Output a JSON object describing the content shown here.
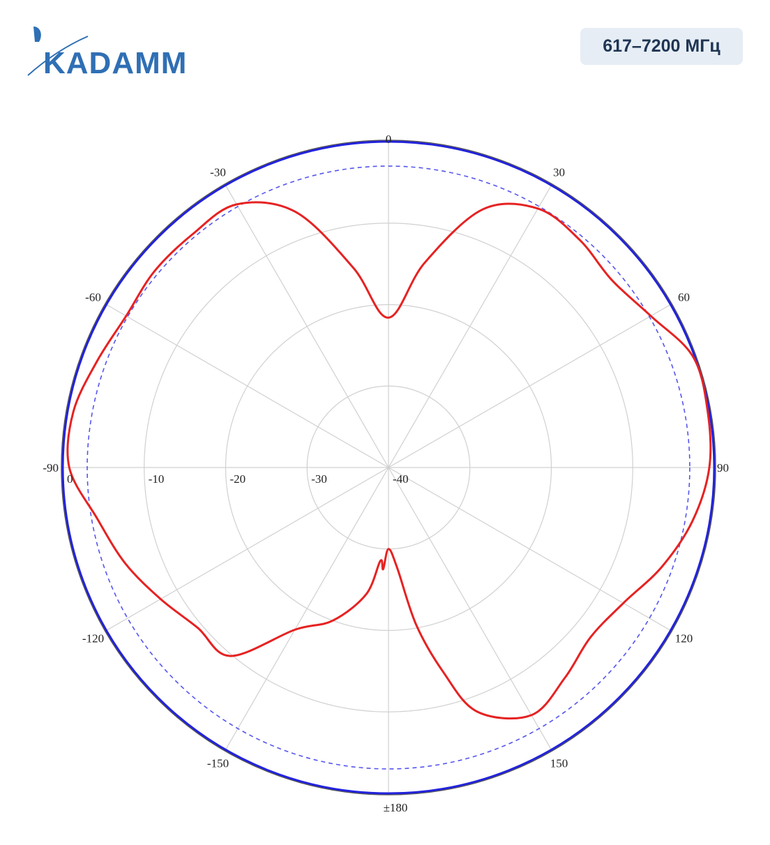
{
  "brand": {
    "logo_text": "KADAMM",
    "logo_color": "#2f6fb4"
  },
  "badge": {
    "text": "617–7200 МГц",
    "bg_color": "#e6edf5",
    "text_color": "#1f3553"
  },
  "chart_data": {
    "type": "polar",
    "angle_unit": "degrees",
    "angle_direction": "clockwise from top",
    "angle_labels": [
      "0",
      "30",
      "60",
      "90",
      "120",
      "150",
      "±180",
      "-150",
      "-120",
      "-90",
      "-60",
      "-30"
    ],
    "angle_ticks": [
      0,
      30,
      60,
      90,
      120,
      150,
      180,
      -150,
      -120,
      -90,
      -60,
      -30
    ],
    "radial_labels": [
      "0",
      "-10",
      "-20",
      "-30",
      "-40"
    ],
    "radial_ticks": [
      0,
      -10,
      -20,
      -30,
      -40
    ],
    "rlim": [
      -40,
      0
    ],
    "grid": true,
    "series": [
      {
        "color": "#2222dd",
        "style": "solid",
        "angles": [
          0,
          180
        ],
        "values": [
          0,
          0
        ]
      },
      {
        "color": "#5555ee",
        "style": "dashed",
        "angles": [
          0,
          180
        ],
        "values": [
          -3,
          -3
        ]
      },
      {
        "color": "#e62222",
        "style": "solid",
        "angles": [
          0,
          10,
          20,
          30,
          40,
          50,
          60,
          70,
          80,
          90,
          100,
          110,
          120,
          130,
          140,
          150,
          160,
          165,
          170,
          175,
          180,
          -177,
          -175,
          -170,
          -160,
          -150,
          -140,
          -130,
          -120,
          -110,
          -100,
          -90,
          -80,
          -70,
          -60,
          -50,
          -40,
          -30,
          -20,
          -10
        ],
        "values": [
          -21.6,
          -14.5,
          -6.3,
          -3.3,
          -3.5,
          -4.2,
          -2.8,
          -0.2,
          -0.2,
          -0.6,
          -2.1,
          -4.3,
          -6.7,
          -7.6,
          -6.3,
          -4.9,
          -8.1,
          -14.0,
          -20.4,
          -27.6,
          -30,
          -27.5,
          -28.5,
          -24.2,
          -20.0,
          -17.0,
          -9.8,
          -9.4,
          -7.7,
          -5.6,
          -3.7,
          -0.8,
          -0.7,
          -1.9,
          -2.8,
          -2.5,
          -2.6,
          -2.7,
          -6.6,
          -15.1
        ]
      }
    ]
  }
}
